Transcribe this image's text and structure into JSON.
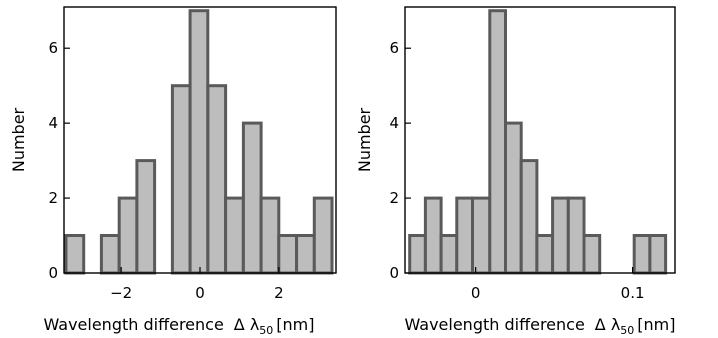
{
  "chart_data": [
    {
      "type": "bar",
      "xlabel": "Wavelength difference",
      "xlabel_math": "Δ λ50 [nm]",
      "ylabel": "Number",
      "xlim": [
        -3.45,
        3.45
      ],
      "ylim": [
        0,
        7.1
      ],
      "xticks": [
        {
          "value": -2,
          "label": "−2"
        },
        {
          "value": 0,
          "label": "0"
        },
        {
          "value": 2,
          "label": "2"
        }
      ],
      "yticks": [
        {
          "value": 0,
          "label": "0"
        },
        {
          "value": 2,
          "label": "2"
        },
        {
          "value": 4,
          "label": "4"
        },
        {
          "value": 6,
          "label": "6"
        }
      ],
      "bins": [
        {
          "start": -3.4,
          "end": -2.95,
          "count": 1
        },
        {
          "start": -2.5,
          "end": -2.05,
          "count": 1
        },
        {
          "start": -2.05,
          "end": -1.6,
          "count": 2
        },
        {
          "start": -1.6,
          "end": -1.15,
          "count": 3
        },
        {
          "start": -0.7,
          "end": -0.25,
          "count": 5
        },
        {
          "start": -0.25,
          "end": 0.2,
          "count": 7
        },
        {
          "start": 0.2,
          "end": 0.65,
          "count": 5
        },
        {
          "start": 0.65,
          "end": 1.1,
          "count": 2
        },
        {
          "start": 1.1,
          "end": 1.55,
          "count": 4
        },
        {
          "start": 1.55,
          "end": 2.0,
          "count": 2
        },
        {
          "start": 2.0,
          "end": 2.45,
          "count": 1
        },
        {
          "start": 2.45,
          "end": 2.9,
          "count": 1
        },
        {
          "start": 2.9,
          "end": 3.35,
          "count": 2
        }
      ]
    },
    {
      "type": "bar",
      "xlabel": "Wavelength difference",
      "xlabel_math": "Δ λ50 [nm]",
      "ylabel": "Number",
      "xlim": [
        -0.045,
        0.127
      ],
      "ylim": [
        0,
        7.1
      ],
      "xticks": [
        {
          "value": 0,
          "label": "0"
        },
        {
          "value": 0.1,
          "label": "0.1"
        }
      ],
      "yticks": [
        {
          "value": 0,
          "label": "0"
        },
        {
          "value": 2,
          "label": "2"
        },
        {
          "value": 4,
          "label": "4"
        },
        {
          "value": 6,
          "label": "6"
        }
      ],
      "bins": [
        {
          "start": -0.042,
          "end": -0.032,
          "count": 1
        },
        {
          "start": -0.032,
          "end": -0.022,
          "count": 2
        },
        {
          "start": -0.022,
          "end": -0.012,
          "count": 1
        },
        {
          "start": -0.012,
          "end": -0.002,
          "count": 2
        },
        {
          "start": -0.002,
          "end": 0.009,
          "count": 2
        },
        {
          "start": 0.009,
          "end": 0.019,
          "count": 7
        },
        {
          "start": 0.019,
          "end": 0.029,
          "count": 4
        },
        {
          "start": 0.029,
          "end": 0.039,
          "count": 3
        },
        {
          "start": 0.039,
          "end": 0.049,
          "count": 1
        },
        {
          "start": 0.049,
          "end": 0.059,
          "count": 2
        },
        {
          "start": 0.059,
          "end": 0.069,
          "count": 2
        },
        {
          "start": 0.069,
          "end": 0.079,
          "count": 1
        },
        {
          "start": 0.101,
          "end": 0.111,
          "count": 1
        },
        {
          "start": 0.111,
          "end": 0.121,
          "count": 1
        }
      ]
    }
  ]
}
